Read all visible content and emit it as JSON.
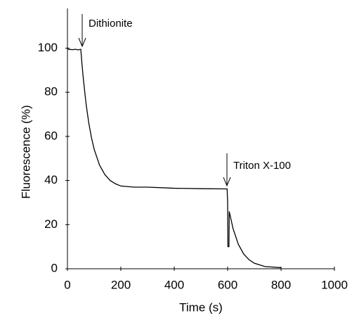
{
  "chart_data": {
    "type": "line",
    "xlabel": "Time (s)",
    "ylabel": "Fluorescence (%)",
    "annotations": [
      "Dithionite",
      "Triton X-100"
    ],
    "color": "#000000",
    "x": [
      0,
      10,
      20,
      30,
      40,
      50,
      55,
      60,
      70,
      80,
      90,
      100,
      120,
      140,
      160,
      180,
      200,
      250,
      300,
      400,
      500,
      598,
      600,
      601,
      605,
      606,
      620,
      640,
      660,
      680,
      700,
      740,
      800
    ],
    "values": [
      99.5,
      99.4,
      99.3,
      99.5,
      99.2,
      99.5,
      92,
      85.5,
      74.5,
      66,
      59.4,
      54.2,
      47,
      42.7,
      40,
      38.5,
      37.5,
      37,
      37,
      36.5,
      36.3,
      36.2,
      30,
      10,
      10,
      26,
      18.3,
      11.1,
      6.7,
      4.1,
      2.5,
      1,
      0.5
    ],
    "xlim": [
      0,
      1000
    ],
    "ylim": [
      0,
      118
    ],
    "xticks": [
      0,
      200,
      400,
      600,
      800,
      1000
    ],
    "yticks": [
      0,
      20,
      40,
      60,
      80,
      100
    ],
    "grid": false
  }
}
